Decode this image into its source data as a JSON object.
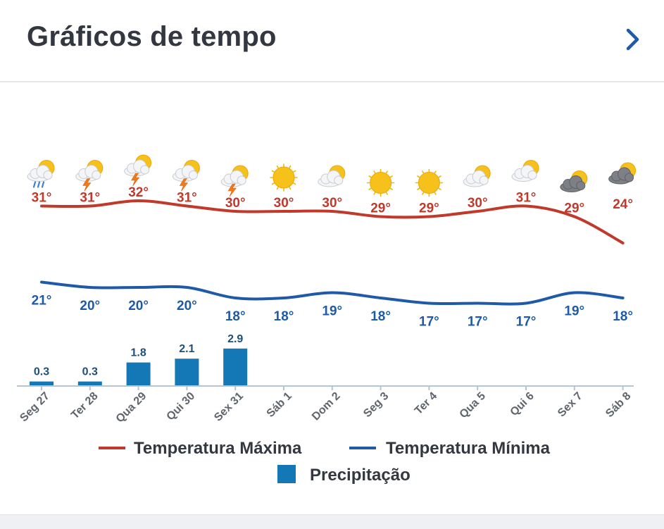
{
  "header": {
    "title": "Gráficos de tempo",
    "next_icon": "chevron-right-icon"
  },
  "colors": {
    "max": "#c0392b",
    "min": "#1e5aa8",
    "precip": "#1578b6",
    "axis": "#b7c4d1",
    "label": "#555b63"
  },
  "chart_data": {
    "type": "line",
    "categories": [
      "Seg 27",
      "Ter 28",
      "Qua 29",
      "Qui 30",
      "Sex 31",
      "Sáb 1",
      "Dom 2",
      "Seg 3",
      "Ter 4",
      "Qua 5",
      "Qui 6",
      "Sex 7",
      "Sáb 8"
    ],
    "icons": [
      "sun-cloud-rain-icon",
      "sun-cloud-storm-icon",
      "sun-cloud-storm-icon",
      "sun-cloud-storm-icon",
      "sun-cloud-storm-icon",
      "sun-icon",
      "sun-cloud-icon",
      "sun-icon",
      "sun-icon",
      "sun-cloud-icon",
      "sun-cloud-icon",
      "sun-dark-cloud-icon",
      "sun-dark-cloud-icon"
    ],
    "series": [
      {
        "name": "Temperatura Máxima",
        "values": [
          31,
          31,
          32,
          31,
          30,
          30,
          30,
          29,
          29,
          30,
          31,
          29,
          24
        ],
        "labels": [
          "31°",
          "31°",
          "32°",
          "31°",
          "30°",
          "30°",
          "30°",
          "29°",
          "29°",
          "30°",
          "31°",
          "29°",
          "24°"
        ]
      },
      {
        "name": "Temperatura Mínima",
        "values": [
          21,
          20,
          20,
          20,
          18,
          18,
          19,
          18,
          17,
          17,
          17,
          19,
          18
        ],
        "labels": [
          "21°",
          "20°",
          "20°",
          "20°",
          "18°",
          "18°",
          "19°",
          "18°",
          "17°",
          "17°",
          "17°",
          "19°",
          "18°"
        ]
      },
      {
        "name": "Precipitação",
        "type": "bar",
        "values": [
          0.3,
          0.3,
          1.8,
          2.1,
          2.9,
          0,
          0,
          0,
          0,
          0,
          0,
          0,
          0
        ],
        "labels": [
          "0.3",
          "0.3",
          "1.8",
          "2.1",
          "2.9",
          "",
          "",
          "",
          "",
          "",
          "",
          "",
          ""
        ]
      }
    ],
    "legend": [
      "Temperatura Máxima",
      "Temperatura Mínima",
      "Precipitação"
    ],
    "legend_position": "bottom"
  }
}
